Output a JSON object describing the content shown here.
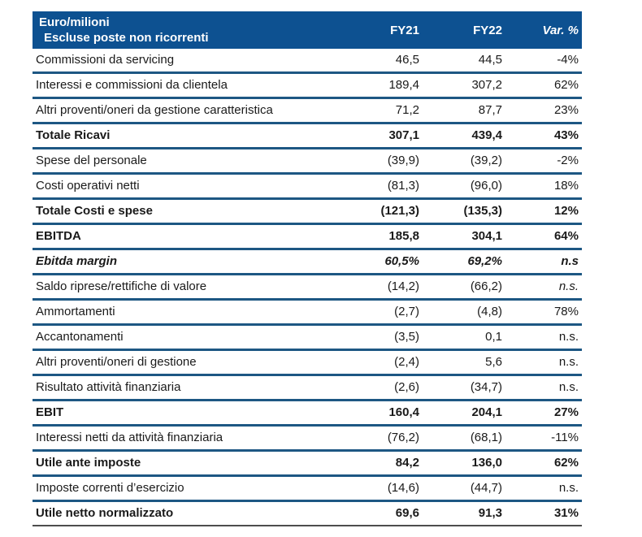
{
  "table": {
    "header": {
      "title_line1": "Euro/milioni",
      "title_line2": "Escluse poste non ricorrenti",
      "col_fy21": "FY21",
      "col_fy22": "FY22",
      "col_var": "Var. %"
    },
    "rows": [
      {
        "label": "Commissioni da servicing",
        "fy21": "46,5",
        "fy22": "44,5",
        "var": "-4%",
        "style": "normal"
      },
      {
        "label": "Interessi e commissioni da clientela",
        "fy21": "189,4",
        "fy22": "307,2",
        "var": "62%",
        "style": "normal"
      },
      {
        "label": "Altri proventi/oneri da gestione caratteristica",
        "fy21": "71,2",
        "fy22": "87,7",
        "var": "23%",
        "style": "normal"
      },
      {
        "label": "Totale Ricavi",
        "fy21": "307,1",
        "fy22": "439,4",
        "var": "43%",
        "style": "bold"
      },
      {
        "label": "Spese del personale",
        "fy21": "(39,9)",
        "fy22": "(39,2)",
        "var": "-2%",
        "style": "normal"
      },
      {
        "label": "Costi operativi netti",
        "fy21": "(81,3)",
        "fy22": "(96,0)",
        "var": "18%",
        "style": "normal"
      },
      {
        "label": "Totale Costi e spese",
        "fy21": "(121,3)",
        "fy22": "(135,3)",
        "var": "12%",
        "style": "bold"
      },
      {
        "label": "EBITDA",
        "fy21": "185,8",
        "fy22": "304,1",
        "var": "64%",
        "style": "bold"
      },
      {
        "label": "Ebitda margin",
        "fy21": "60,5%",
        "fy22": "69,2%",
        "var": "n.s",
        "style": "bold-italic"
      },
      {
        "label": "Saldo riprese/rettifiche di valore",
        "fy21": "(14,2)",
        "fy22": "(66,2)",
        "var": "n.s.",
        "style": "normal",
        "var_italic": true
      },
      {
        "label": "Ammortamenti",
        "fy21": "(2,7)",
        "fy22": "(4,8)",
        "var": "78%",
        "style": "normal"
      },
      {
        "label": "Accantonamenti",
        "fy21": "(3,5)",
        "fy22": "0,1",
        "var": "n.s.",
        "style": "normal"
      },
      {
        "label": "Altri proventi/oneri di gestione",
        "fy21": "(2,4)",
        "fy22": "5,6",
        "var": "n.s.",
        "style": "normal"
      },
      {
        "label": "Risultato attività finanziaria",
        "fy21": "(2,6)",
        "fy22": "(34,7)",
        "var": "n.s.",
        "style": "normal"
      },
      {
        "label": "EBIT",
        "fy21": "160,4",
        "fy22": "204,1",
        "var": "27%",
        "style": "bold"
      },
      {
        "label": "Interessi netti da attività finanziaria",
        "fy21": "(76,2)",
        "fy22": "(68,1)",
        "var": "-11%",
        "style": "normal"
      },
      {
        "label": "Utile ante imposte",
        "fy21": "84,2",
        "fy22": "136,0",
        "var": "62%",
        "style": "bold"
      },
      {
        "label": "Imposte correnti d’esercizio",
        "fy21": "(14,6)",
        "fy22": "(44,7)",
        "var": "n.s.",
        "style": "normal"
      },
      {
        "label": "Utile netto normalizzato",
        "fy21": "69,6",
        "fy22": "91,3",
        "var": "31%",
        "style": "bold"
      }
    ],
    "colors": {
      "header_bg": "#0d5191",
      "header_text": "#ffffff",
      "row_separator": "#1d5783",
      "bottom_border": "#4d4d4d",
      "body_text": "#1a1a1a"
    }
  }
}
